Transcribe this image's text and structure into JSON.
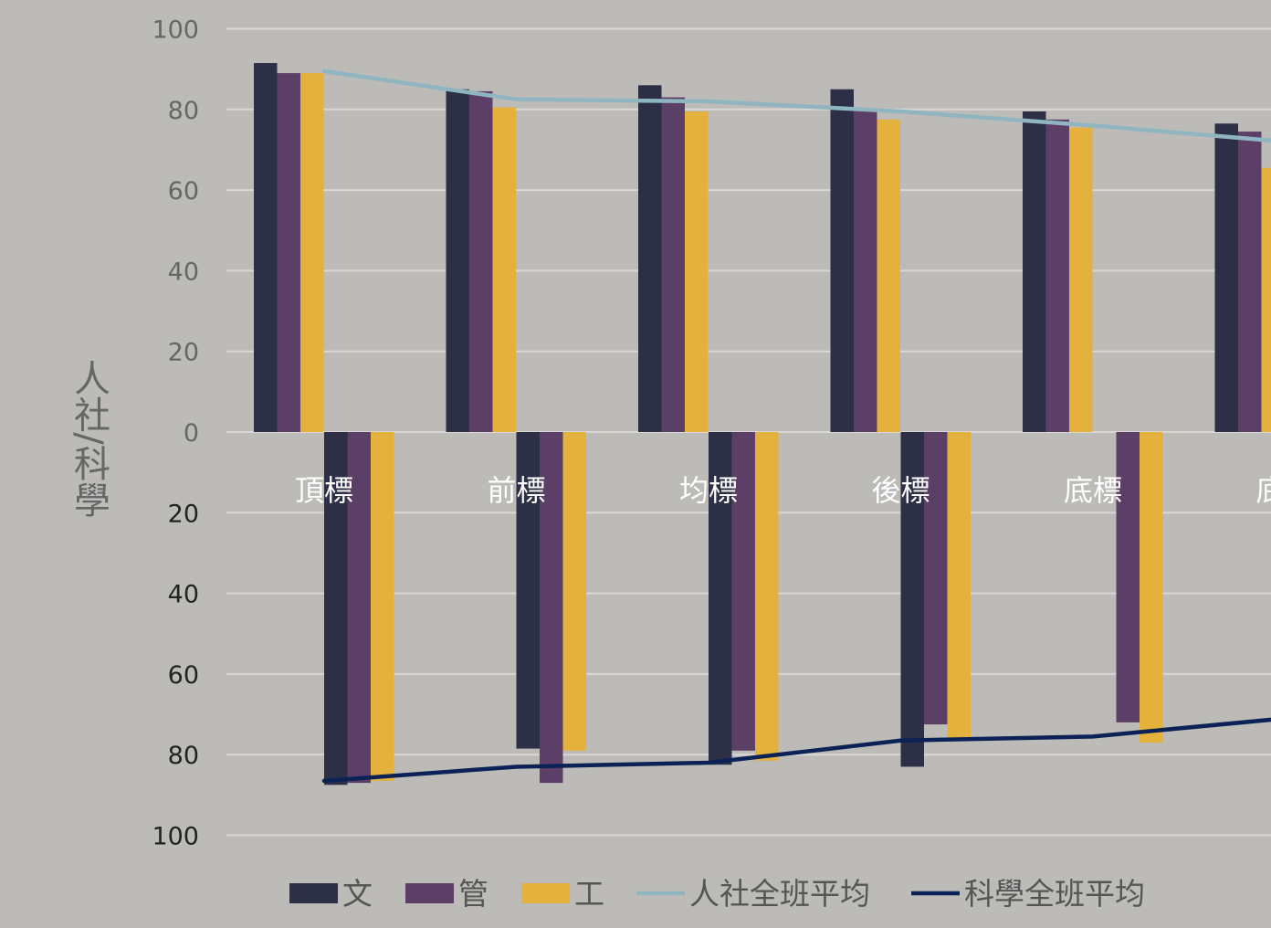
{
  "chart_data": {
    "type": "bar",
    "title": "",
    "xlabel": "",
    "ylabel": "人社/科學",
    "categories": [
      "頂標",
      "前標",
      "均標",
      "後標",
      "底標",
      "底標"
    ],
    "upper_axis": {
      "ylim": [
        0,
        100
      ],
      "ticks": [
        "0",
        "20",
        "40",
        "60",
        "80",
        "100"
      ]
    },
    "lower_axis": {
      "ylim": [
        0,
        100
      ],
      "ticks": [
        "20",
        "40",
        "60",
        "80",
        "100"
      ]
    },
    "grid": true,
    "legend_position": "bottom",
    "upper_series": [
      {
        "name": "文",
        "color": "#2d2f47",
        "values": [
          91.5,
          85,
          86,
          85,
          79.5,
          76.5
        ]
      },
      {
        "name": "管",
        "color": "#5c3f66",
        "values": [
          89,
          84.5,
          83,
          80,
          77.5,
          74.5
        ]
      },
      {
        "name": "工",
        "color": "#e3b13c",
        "values": [
          89,
          80.5,
          79.5,
          77.5,
          75.5,
          65.5
        ]
      }
    ],
    "lower_series": [
      {
        "name": "文",
        "color": "#2d2f47",
        "values": [
          87.5,
          78.5,
          82.5,
          83,
          null,
          null
        ]
      },
      {
        "name": "管",
        "color": "#5c3f66",
        "values": [
          87,
          87,
          79,
          72.5,
          72,
          null
        ]
      },
      {
        "name": "工",
        "color": "#e3b13c",
        "values": [
          86.5,
          79,
          81.5,
          76,
          77,
          null
        ]
      }
    ],
    "lines": [
      {
        "name": "人社全班平均",
        "color": "#8fb6c0",
        "axis": "upper",
        "values": [
          89.5,
          82.5,
          82,
          79.5,
          76,
          72
        ]
      },
      {
        "name": "科學全班平均",
        "color": "#0b2257",
        "axis": "lower",
        "values": [
          86.5,
          83,
          82,
          76.5,
          75.5,
          71
        ]
      }
    ],
    "legend": [
      "文",
      "管",
      "工",
      "人社全班平均",
      "科學全班平均"
    ]
  }
}
